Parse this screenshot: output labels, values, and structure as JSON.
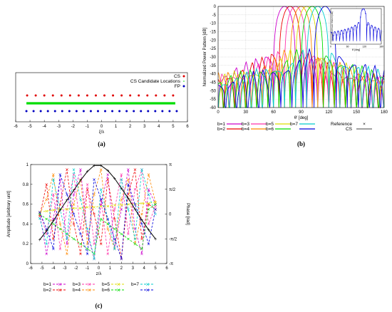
{
  "chart_data": [
    {
      "id": "a",
      "type": "scatter",
      "caption": "(a)",
      "xlabel": "ξ/λ",
      "xlim": [
        -6,
        6
      ],
      "xticks": [
        -6,
        -5,
        -4,
        -3,
        -2,
        -1,
        0,
        1,
        2,
        3,
        4,
        5,
        6
      ],
      "legend_position": "top-right",
      "series": [
        {
          "name": "CS",
          "color": "#e00000",
          "marker": "dot",
          "row": 3,
          "x": [
            -5.2,
            -4.6,
            -4.0,
            -3.4,
            -2.8,
            -2.2,
            -1.6,
            -1.0,
            -0.4,
            0.2,
            0.8,
            1.4,
            2.0,
            2.6,
            3.2,
            3.8,
            4.4,
            5.0
          ]
        },
        {
          "name": "CS Candidate Locations",
          "color": "#00dd00",
          "marker": "dense-line",
          "row": 2,
          "x_range": [
            -5.25,
            5.15
          ]
        },
        {
          "name": "FP",
          "color": "#0000c0",
          "marker": "dot",
          "row": 1,
          "x": [
            -5.25,
            -4.75,
            -4.25,
            -3.75,
            -3.25,
            -2.75,
            -2.25,
            -1.75,
            -1.25,
            -0.75,
            -0.25,
            0.25,
            0.75,
            1.25,
            1.75,
            2.25,
            2.75,
            3.25,
            3.75,
            4.25,
            4.75,
            5.25
          ]
        }
      ]
    },
    {
      "id": "b",
      "type": "line",
      "caption": "(b)",
      "xlabel": "θ' [deg]",
      "ylabel": "Normalized Power Pattern [dB]",
      "xlim": [
        0,
        180
      ],
      "ylim": [
        -60,
        0
      ],
      "xticks": [
        0,
        30,
        60,
        90,
        120,
        150,
        180
      ],
      "yticks": [
        0,
        -5,
        -10,
        -15,
        -20,
        -25,
        -30,
        -35,
        -40,
        -45,
        -50,
        -55,
        -60
      ],
      "grid": true,
      "mainlobe_width_deg": 12,
      "sidelobe_level_db": [
        -30,
        -38
      ],
      "beams": [
        {
          "name": "b=1",
          "color": "#cc00cc",
          "peak_deg": 72
        },
        {
          "name": "b=2",
          "color": "#ee0000",
          "peak_deg": 78
        },
        {
          "name": "b=3",
          "color": "#ff33aa",
          "peak_deg": 84
        },
        {
          "name": "b=4",
          "color": "#ff8800",
          "peak_deg": 90
        },
        {
          "name": "b=5",
          "color": "#dddd00",
          "peak_deg": 96
        },
        {
          "name": "b=6",
          "color": "#00dd00",
          "peak_deg": 102
        },
        {
          "name": "b=7",
          "color": "#00cccc",
          "peak_deg": 108
        },
        {
          "name": "",
          "color": "#0000dd",
          "peak_deg": 116
        }
      ],
      "legend_extra": [
        {
          "name": "Reference",
          "symbol": "×"
        },
        {
          "name": "CS",
          "symbol": "line"
        }
      ],
      "inset": {
        "xlabel": "θ' [deg]",
        "ylabel": "Normalized Power Pattern [dB]",
        "xticks": [
          0,
          60,
          120,
          180
        ],
        "peak_deg": 116
      }
    },
    {
      "id": "c",
      "type": "line",
      "caption": "(c)",
      "xlabel": "z/λ",
      "ylabel": "Amplitude [arbitrary unit]",
      "ylabel_right": "Phase [rad]",
      "xlim": [
        -6,
        6
      ],
      "ylim": [
        0,
        1
      ],
      "xticks": [
        -6,
        -5,
        -4,
        -3,
        -2,
        -1,
        0,
        1,
        2,
        3,
        4,
        5,
        6
      ],
      "yticks": [
        0,
        0.2,
        0.4,
        0.6,
        0.8,
        1
      ],
      "yticks_right": [
        "π",
        "π/2",
        "0",
        "-π/2",
        "-π"
      ],
      "x": [
        -5.2,
        -4.6,
        -4.0,
        -3.4,
        -2.8,
        -2.2,
        -1.6,
        -1.0,
        -0.4,
        0.2,
        0.8,
        1.4,
        2.0,
        2.6,
        3.2,
        3.8,
        4.4,
        5.0
      ],
      "amplitude": {
        "name": "",
        "color": "#000000",
        "values": [
          0.24,
          0.33,
          0.43,
          0.54,
          0.64,
          0.74,
          0.84,
          0.93,
          0.99,
          0.99,
          0.94,
          0.86,
          0.76,
          0.66,
          0.55,
          0.44,
          0.34,
          0.25
        ]
      },
      "series": [
        {
          "name": "b=1",
          "color": "#cc00cc",
          "values": [
            0.5,
            0.1,
            0.45,
            0.85,
            0.2,
            0.7,
            0.95,
            0.3,
            0.05,
            0.6,
            0.9,
            0.15,
            0.55,
            0.95,
            0.35,
            0.1,
            0.75,
            0.6
          ]
        },
        {
          "name": "b=2",
          "color": "#ee0000",
          "values": [
            0.48,
            0.8,
            0.25,
            0.6,
            0.95,
            0.4,
            0.1,
            0.75,
            0.5,
            0.2,
            0.85,
            0.45,
            0.05,
            0.7,
            0.95,
            0.25,
            0.6,
            0.55
          ]
        },
        {
          "name": "b=3",
          "color": "#ff33aa",
          "values": [
            0.52,
            0.3,
            0.7,
            0.15,
            0.55,
            0.9,
            0.35,
            0.8,
            0.2,
            0.65,
            0.1,
            0.55,
            0.9,
            0.3,
            0.75,
            0.95,
            0.4,
            0.58
          ]
        },
        {
          "name": "b=4",
          "color": "#ff8800",
          "values": [
            0.5,
            0.65,
            0.9,
            0.4,
            0.1,
            0.6,
            0.85,
            0.2,
            0.7,
            0.95,
            0.35,
            0.15,
            0.65,
            0.85,
            0.2,
            0.5,
            0.9,
            0.62
          ]
        },
        {
          "name": "b=5",
          "color": "#dddd00",
          "values": [
            0.52,
            0.53,
            0.54,
            0.55,
            0.55,
            0.56,
            0.56,
            0.57,
            0.57,
            0.58,
            0.58,
            0.59,
            0.59,
            0.6,
            0.6,
            0.61,
            0.61,
            0.62
          ]
        },
        {
          "name": "b=6",
          "color": "#00dd00",
          "values": [
            0.5,
            0.45,
            0.4,
            0.35,
            0.3,
            0.25,
            0.2,
            0.15,
            0.1,
            0.45,
            0.4,
            0.35,
            0.3,
            0.25,
            0.2,
            0.15,
            0.55,
            0.6
          ]
        },
        {
          "name": "b=7",
          "color": "#00cccc",
          "values": [
            0.46,
            0.2,
            0.85,
            0.55,
            0.25,
            0.95,
            0.65,
            0.35,
            0.05,
            0.75,
            0.45,
            0.15,
            0.85,
            0.55,
            0.25,
            0.95,
            0.7,
            0.5
          ]
        },
        {
          "name": "",
          "color": "#0000dd",
          "values": [
            0.52,
            0.35,
            0.15,
            0.9,
            0.7,
            0.5,
            0.3,
            0.1,
            0.85,
            0.65,
            0.45,
            0.25,
            0.05,
            0.8,
            0.6,
            0.4,
            0.2,
            0.55
          ]
        }
      ]
    }
  ]
}
